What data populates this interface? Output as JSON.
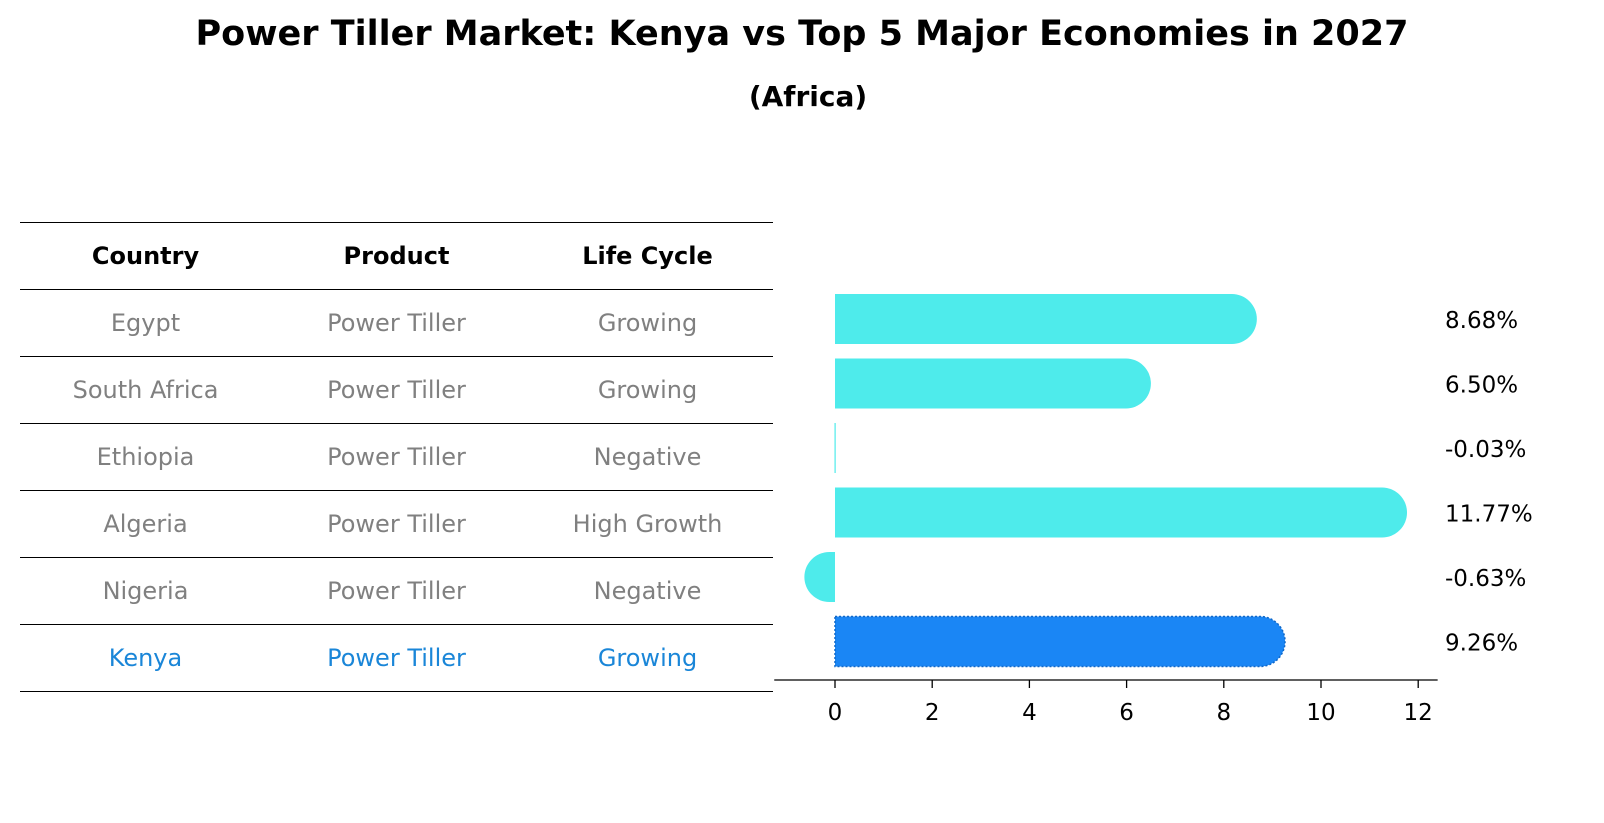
{
  "title": "Power Tiller Market: Kenya vs Top 5 Major Economies in 2027",
  "subtitle": "(Africa)",
  "table": {
    "headers": [
      "Country",
      "Product",
      "Life Cycle"
    ],
    "rows": [
      {
        "country": "Egypt",
        "product": "Power Tiller",
        "life_cycle": "Growing"
      },
      {
        "country": "South Africa",
        "product": "Power Tiller",
        "life_cycle": "Growing"
      },
      {
        "country": "Ethiopia",
        "product": "Power Tiller",
        "life_cycle": "Negative"
      },
      {
        "country": "Algeria",
        "product": "Power Tiller",
        "life_cycle": "High Growth"
      },
      {
        "country": "Nigeria",
        "product": "Power Tiller",
        "life_cycle": "Negative"
      },
      {
        "country": "Kenya",
        "product": "Power Tiller",
        "life_cycle": "Growing"
      }
    ]
  },
  "colors": {
    "bar": "#4eebeb",
    "highlight": "#1a86f5",
    "highlight_text": "#1a86d8",
    "muted_text": "#808080"
  },
  "chart_data": {
    "type": "bar",
    "orientation": "horizontal",
    "categories": [
      "Egypt",
      "South Africa",
      "Ethiopia",
      "Algeria",
      "Nigeria",
      "Kenya"
    ],
    "values": [
      8.68,
      6.5,
      -0.03,
      11.77,
      -0.63,
      9.26
    ],
    "value_labels": [
      "8.68%",
      "6.50%",
      "-0.03%",
      "11.77%",
      "-0.63%",
      "9.26%"
    ],
    "highlight": "Kenya",
    "xticks": [
      0,
      2,
      4,
      6,
      8,
      10,
      12
    ],
    "xlim": [
      -1.25,
      12.4
    ],
    "title": "",
    "xlabel": "",
    "ylabel": "",
    "grid": false
  }
}
